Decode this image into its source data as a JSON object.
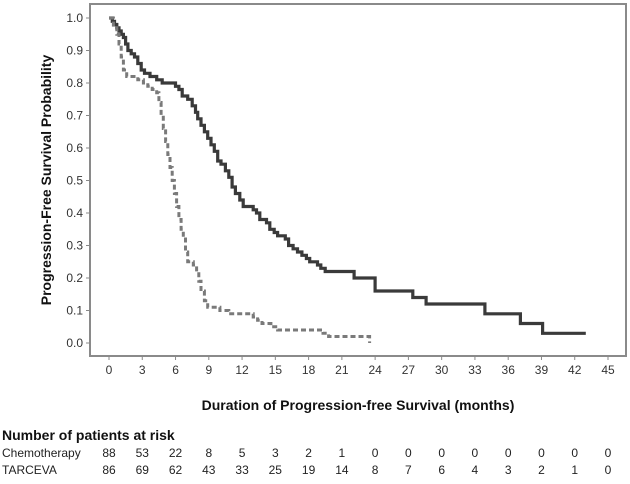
{
  "chart_data": {
    "type": "line",
    "title": "",
    "xlabel": "Duration of Progression-free Survival (months)",
    "ylabel": "Progression-Free Survival Probability",
    "xlim": [
      -1.7,
      46.5
    ],
    "ylim": [
      -0.04,
      1.04
    ],
    "x_ticks": [
      0,
      3,
      6,
      9,
      12,
      15,
      18,
      21,
      24,
      27,
      30,
      33,
      36,
      39,
      42,
      45
    ],
    "x_tick_labels": [
      "0",
      "3",
      "6",
      "9",
      "12",
      "15",
      "18",
      "21",
      "24",
      "27",
      "30",
      "33",
      "36",
      "39",
      "42",
      "45"
    ],
    "y_ticks": [
      0.0,
      0.1,
      0.2,
      0.3,
      0.4,
      0.5,
      0.6,
      0.7,
      0.8,
      0.9,
      1.0
    ],
    "y_tick_labels": [
      "0.0",
      "0.1",
      "0.2",
      "0.3",
      "0.4",
      "0.5",
      "0.6",
      "0.7",
      "0.8",
      "0.9",
      "1.0"
    ],
    "grid": false,
    "series": [
      {
        "name": "TARCEVA",
        "style": "solid",
        "color": "#3a3a3a",
        "steps": [
          [
            0,
            1.0
          ],
          [
            0.3,
            0.99
          ],
          [
            0.5,
            0.98
          ],
          [
            0.7,
            0.97
          ],
          [
            0.9,
            0.96
          ],
          [
            1.1,
            0.95
          ],
          [
            1.3,
            0.94
          ],
          [
            1.5,
            0.92
          ],
          [
            1.7,
            0.9
          ],
          [
            2.0,
            0.89
          ],
          [
            2.3,
            0.88
          ],
          [
            2.6,
            0.86
          ],
          [
            2.9,
            0.84
          ],
          [
            3.2,
            0.83
          ],
          [
            3.7,
            0.82
          ],
          [
            4.3,
            0.81
          ],
          [
            4.8,
            0.8
          ],
          [
            6.0,
            0.79
          ],
          [
            6.3,
            0.78
          ],
          [
            6.6,
            0.76
          ],
          [
            7.1,
            0.75
          ],
          [
            7.5,
            0.73
          ],
          [
            7.8,
            0.71
          ],
          [
            8.0,
            0.69
          ],
          [
            8.3,
            0.67
          ],
          [
            8.6,
            0.65
          ],
          [
            8.9,
            0.63
          ],
          [
            9.2,
            0.61
          ],
          [
            9.5,
            0.59
          ],
          [
            9.8,
            0.56
          ],
          [
            10.1,
            0.55
          ],
          [
            10.5,
            0.53
          ],
          [
            10.8,
            0.51
          ],
          [
            11.1,
            0.48
          ],
          [
            11.4,
            0.46
          ],
          [
            11.8,
            0.44
          ],
          [
            12.1,
            0.42
          ],
          [
            13.0,
            0.41
          ],
          [
            13.3,
            0.4
          ],
          [
            13.6,
            0.38
          ],
          [
            14.2,
            0.37
          ],
          [
            14.5,
            0.35
          ],
          [
            14.9,
            0.34
          ],
          [
            15.2,
            0.33
          ],
          [
            15.9,
            0.32
          ],
          [
            16.2,
            0.3
          ],
          [
            16.6,
            0.29
          ],
          [
            17.0,
            0.28
          ],
          [
            17.4,
            0.27
          ],
          [
            17.8,
            0.26
          ],
          [
            18.1,
            0.25
          ],
          [
            18.8,
            0.24
          ],
          [
            19.1,
            0.23
          ],
          [
            19.5,
            0.22
          ],
          [
            22.1,
            0.2
          ],
          [
            24.0,
            0.16
          ],
          [
            27.4,
            0.14
          ],
          [
            28.6,
            0.12
          ],
          [
            33.9,
            0.09
          ],
          [
            37.1,
            0.06
          ],
          [
            39.1,
            0.03
          ],
          [
            43.0,
            0.03
          ]
        ]
      },
      {
        "name": "Chemotherapy",
        "style": "dashed",
        "color": "#7a7a7a",
        "steps": [
          [
            0,
            1.0
          ],
          [
            0.4,
            0.97
          ],
          [
            0.7,
            0.95
          ],
          [
            0.9,
            0.92
          ],
          [
            1.1,
            0.88
          ],
          [
            1.3,
            0.84
          ],
          [
            1.6,
            0.82
          ],
          [
            2.6,
            0.81
          ],
          [
            3.1,
            0.8
          ],
          [
            3.5,
            0.79
          ],
          [
            3.9,
            0.78
          ],
          [
            4.3,
            0.77
          ],
          [
            4.5,
            0.74
          ],
          [
            4.7,
            0.7
          ],
          [
            4.9,
            0.66
          ],
          [
            5.1,
            0.62
          ],
          [
            5.3,
            0.58
          ],
          [
            5.5,
            0.54
          ],
          [
            5.7,
            0.5
          ],
          [
            5.9,
            0.46
          ],
          [
            6.1,
            0.42
          ],
          [
            6.3,
            0.38
          ],
          [
            6.5,
            0.35
          ],
          [
            6.7,
            0.32
          ],
          [
            6.9,
            0.28
          ],
          [
            7.1,
            0.25
          ],
          [
            7.6,
            0.24
          ],
          [
            7.9,
            0.22
          ],
          [
            8.1,
            0.19
          ],
          [
            8.3,
            0.16
          ],
          [
            8.6,
            0.13
          ],
          [
            8.9,
            0.11
          ],
          [
            10.0,
            0.1
          ],
          [
            10.8,
            0.09
          ],
          [
            13.0,
            0.08
          ],
          [
            13.4,
            0.07
          ],
          [
            13.8,
            0.06
          ],
          [
            14.6,
            0.05
          ],
          [
            15.2,
            0.04
          ],
          [
            19.3,
            0.03
          ],
          [
            19.8,
            0.02
          ],
          [
            23.5,
            0.0
          ]
        ]
      }
    ]
  },
  "at_risk": {
    "heading": "Number of patients at risk",
    "times": [
      0,
      3,
      6,
      9,
      12,
      15,
      18,
      21,
      24,
      27,
      30,
      33,
      36,
      39,
      42,
      45
    ],
    "rows": [
      {
        "name": "Chemotherapy",
        "values": [
          "88",
          "53",
          "22",
          "8",
          "5",
          "3",
          "2",
          "1",
          "0",
          "0",
          "0",
          "0",
          "0",
          "0",
          "0",
          "0"
        ]
      },
      {
        "name": "TARCEVA",
        "values": [
          "86",
          "69",
          "62",
          "43",
          "33",
          "25",
          "19",
          "14",
          "8",
          "7",
          "6",
          "4",
          "3",
          "2",
          "1",
          "0"
        ]
      }
    ]
  }
}
